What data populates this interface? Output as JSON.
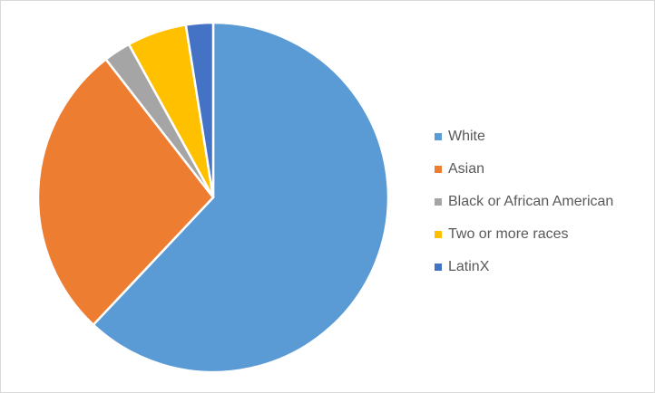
{
  "chart_data": {
    "type": "pie",
    "title": "",
    "legend_position": "right",
    "slices": [
      {
        "label": "White",
        "value": 62.0,
        "color": "#5b9bd5"
      },
      {
        "label": "Asian",
        "value": 27.5,
        "color": "#ed7d31"
      },
      {
        "label": "Black or African American",
        "value": 2.5,
        "color": "#a5a5a5"
      },
      {
        "label": "Two or more races",
        "value": 5.5,
        "color": "#ffc000"
      },
      {
        "label": "LatinX",
        "value": 2.5,
        "color": "#4472c4"
      }
    ]
  },
  "legend": {
    "items": [
      {
        "label": "White",
        "color": "#5b9bd5"
      },
      {
        "label": "Asian",
        "color": "#ed7d31"
      },
      {
        "label": "Black or African American",
        "color": "#a5a5a5"
      },
      {
        "label": "Two or more races",
        "color": "#ffc000"
      },
      {
        "label": "LatinX",
        "color": "#4472c4"
      }
    ]
  }
}
